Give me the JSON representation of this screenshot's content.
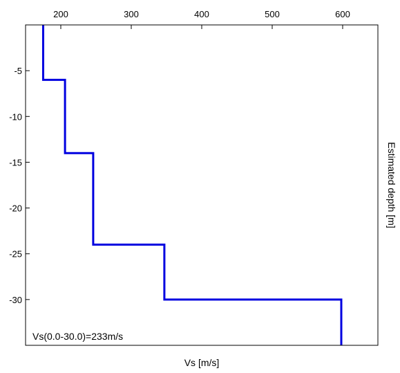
{
  "chart_data": {
    "type": "line",
    "xlabel": "Vs [m/s]",
    "ylabel": "Estimated depth [m]",
    "xlim": [
      150,
      650
    ],
    "ylim": [
      -35,
      0
    ],
    "x_ticks": [
      200,
      300,
      400,
      500,
      600
    ],
    "y_ticks": [
      -5,
      -10,
      -15,
      -20,
      -25,
      -30
    ],
    "x_axis_position": "top",
    "y_label_position": "right",
    "grid": false,
    "line_color": "#0000e0",
    "series": [
      {
        "x": [
          175,
          175,
          206,
          206,
          246,
          246,
          347,
          347,
          598,
          598
        ],
        "y": [
          0,
          -6,
          -6,
          -14,
          -14,
          -24,
          -24,
          -30,
          -30,
          -35
        ]
      }
    ],
    "annotation": "Vs(0.0-30.0)=233m/s"
  }
}
